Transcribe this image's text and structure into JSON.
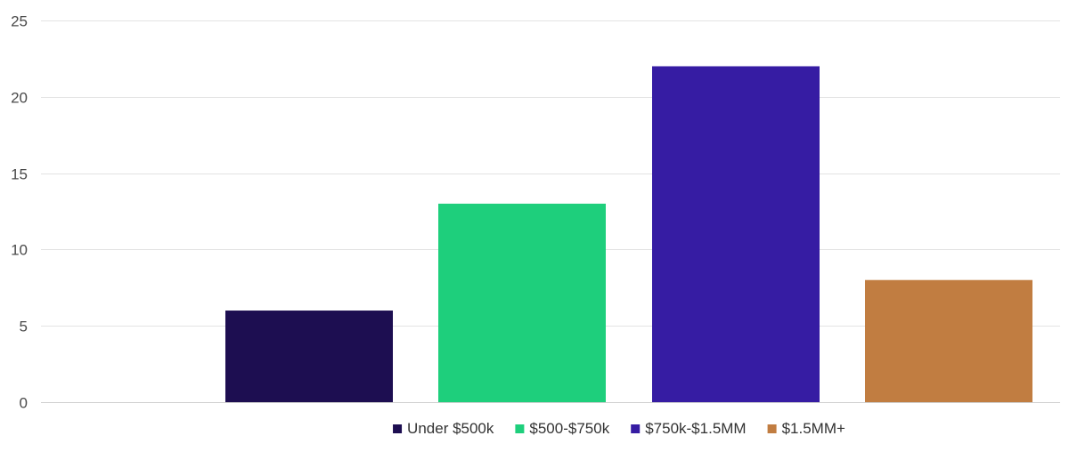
{
  "chart_data": {
    "type": "bar",
    "title": "",
    "xlabel": "",
    "ylabel": "",
    "ylim": [
      0,
      25
    ],
    "yticks": [
      0,
      5,
      10,
      15,
      20,
      25
    ],
    "grid": true,
    "legend_position": "bottom-center",
    "categories": [
      "Under $500k",
      "$500-$750k",
      "$750k-$1.5MM",
      "$1.5MM+"
    ],
    "series": [
      {
        "values": [
          6,
          13,
          22,
          8
        ],
        "colors": [
          "#1d0e51",
          "#1ecf7c",
          "#361ca3",
          "#c17d41"
        ]
      }
    ]
  }
}
